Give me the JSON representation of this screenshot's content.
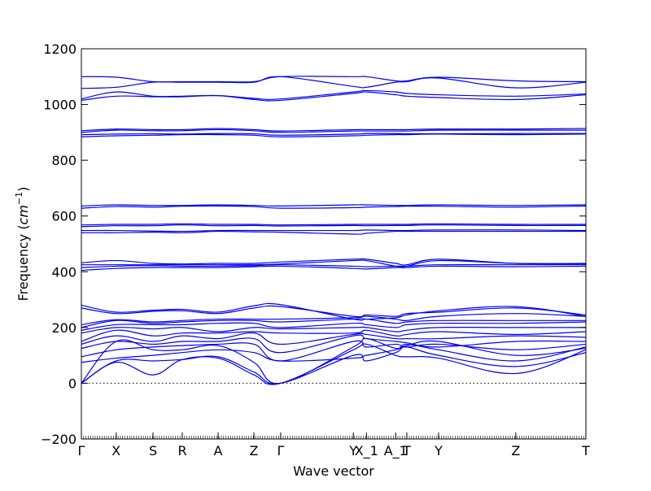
{
  "chart_data": {
    "type": "line",
    "title": "",
    "xlabel": "Wave vector",
    "ylabel": "Frequency (cm⁻¹)",
    "ylabel_parts": {
      "main": "Frequency (",
      "unit": "cm",
      "exp": "−1",
      "close": ")"
    },
    "ylim": [
      -200,
      1200
    ],
    "yticks": [
      -200,
      0,
      200,
      400,
      600,
      800,
      1000,
      1200
    ],
    "ytick_labels": [
      "−200",
      "0",
      "200",
      "400",
      "600",
      "800",
      "1000",
      "1200"
    ],
    "xlim": [
      0,
      1
    ],
    "grid": false,
    "legend": "none",
    "line_color": "#0000ee",
    "zero_line_color": "#000000",
    "high_symmetry_points": [
      {
        "label": "Γ",
        "x": 0.0
      },
      {
        "label": "X",
        "x": 0.069
      },
      {
        "label": "S",
        "x": 0.142
      },
      {
        "label": "R",
        "x": 0.2
      },
      {
        "label": "A",
        "x": 0.271
      },
      {
        "label": "Z",
        "x": 0.342
      },
      {
        "label": "Γ",
        "x": 0.395
      },
      {
        "label": "Y",
        "x": 0.539
      },
      {
        "label": "X_1",
        "x": 0.565
      },
      {
        "label": "A_1",
        "x": 0.623
      },
      {
        "label": "T",
        "x": 0.645
      },
      {
        "label": "Y",
        "x": 0.708
      },
      {
        "label": "Z",
        "x": 0.861
      },
      {
        "label": "T",
        "x": 1.0
      }
    ],
    "x": [
      0.0,
      0.069,
      0.142,
      0.2,
      0.271,
      0.342,
      0.395,
      0.539,
      0.565,
      0.623,
      0.645,
      0.708,
      0.861,
      1.0
    ],
    "series": [
      {
        "values": [
          0,
          75,
          30,
          85,
          90,
          30,
          0,
          120,
          140,
          100,
          95,
          90,
          35,
          120
        ]
      },
      {
        "values": [
          0,
          80,
          80,
          85,
          95,
          40,
          0,
          100,
          80,
          110,
          130,
          100,
          60,
          110
        ]
      },
      {
        "values": [
          0,
          150,
          120,
          120,
          135,
          75,
          0,
          130,
          160,
          125,
          140,
          120,
          80,
          130
        ]
      },
      {
        "values": [
          75,
          90,
          100,
          110,
          120,
          110,
          80,
          90,
          100,
          120,
          135,
          150,
          100,
          125
        ]
      },
      {
        "values": [
          95,
          120,
          130,
          135,
          140,
          140,
          80,
          150,
          130,
          140,
          130,
          140,
          120,
          140
        ]
      },
      {
        "values": [
          125,
          150,
          140,
          150,
          150,
          160,
          110,
          170,
          160,
          150,
          145,
          130,
          150,
          150
        ]
      },
      {
        "values": [
          140,
          170,
          150,
          170,
          160,
          180,
          140,
          175,
          175,
          160,
          160,
          160,
          170,
          165
        ]
      },
      {
        "values": [
          150,
          190,
          170,
          180,
          180,
          185,
          180,
          180,
          190,
          170,
          175,
          185,
          175,
          185
        ]
      },
      {
        "values": [
          180,
          200,
          195,
          200,
          185,
          200,
          195,
          200,
          200,
          185,
          190,
          200,
          200,
          200
        ]
      },
      {
        "values": [
          190,
          210,
          210,
          210,
          215,
          215,
          200,
          215,
          210,
          200,
          210,
          215,
          215,
          220
        ]
      },
      {
        "values": [
          200,
          225,
          215,
          220,
          225,
          225,
          220,
          230,
          230,
          215,
          220,
          225,
          225,
          225
        ]
      },
      {
        "values": [
          210,
          228,
          220,
          225,
          230,
          230,
          230,
          235,
          240,
          230,
          225,
          240,
          250,
          240
        ]
      },
      {
        "values": [
          270,
          250,
          258,
          260,
          250,
          270,
          275,
          240,
          245,
          240,
          250,
          255,
          270,
          245
        ]
      },
      {
        "values": [
          280,
          255,
          262,
          265,
          255,
          278,
          282,
          230,
          230,
          235,
          245,
          260,
          275,
          240
        ]
      },
      {
        "values": [
          405,
          412,
          415,
          415,
          415,
          418,
          420,
          412,
          410,
          415,
          415,
          420,
          418,
          420
        ]
      },
      {
        "values": [
          415,
          420,
          422,
          420,
          420,
          422,
          425,
          420,
          418,
          420,
          420,
          425,
          425,
          425
        ]
      },
      {
        "values": [
          425,
          425,
          425,
          425,
          425,
          425,
          428,
          440,
          440,
          420,
          420,
          440,
          430,
          430
        ]
      },
      {
        "values": [
          432,
          440,
          430,
          428,
          430,
          430,
          435,
          445,
          445,
          430,
          425,
          445,
          430,
          428
        ]
      },
      {
        "values": [
          540,
          540,
          542,
          540,
          545,
          543,
          542,
          535,
          538,
          545,
          545,
          545,
          545,
          545
        ]
      },
      {
        "values": [
          548,
          548,
          546,
          545,
          548,
          548,
          548,
          548,
          550,
          548,
          548,
          550,
          550,
          548
        ]
      },
      {
        "values": [
          562,
          565,
          565,
          568,
          565,
          566,
          564,
          566,
          565,
          566,
          566,
          568,
          566,
          566
        ]
      },
      {
        "values": [
          568,
          570,
          570,
          572,
          570,
          570,
          568,
          570,
          570,
          570,
          570,
          572,
          570,
          570
        ]
      },
      {
        "values": [
          628,
          634,
          632,
          635,
          636,
          634,
          628,
          630,
          632,
          634,
          635,
          635,
          632,
          636
        ]
      },
      {
        "values": [
          636,
          640,
          638,
          638,
          640,
          638,
          636,
          640,
          640,
          638,
          638,
          640,
          638,
          640
        ]
      },
      {
        "values": [
          884,
          888,
          890,
          892,
          892,
          890,
          884,
          888,
          890,
          892,
          892,
          894,
          892,
          894
        ]
      },
      {
        "values": [
          892,
          894,
          895,
          894,
          896,
          895,
          890,
          894,
          896,
          896,
          895,
          895,
          896,
          896
        ]
      },
      {
        "values": [
          900,
          908,
          906,
          906,
          910,
          906,
          900,
          905,
          905,
          905,
          905,
          908,
          908,
          908
        ]
      },
      {
        "values": [
          906,
          912,
          910,
          910,
          914,
          910,
          905,
          910,
          910,
          910,
          910,
          912,
          912,
          914
        ]
      },
      {
        "values": [
          1015,
          1030,
          1028,
          1028,
          1032,
          1018,
          1015,
          1040,
          1045,
          1035,
          1030,
          1025,
          1018,
          1035
        ]
      },
      {
        "values": [
          1020,
          1045,
          1030,
          1030,
          1032,
          1022,
          1020,
          1045,
          1050,
          1045,
          1040,
          1035,
          1030,
          1038
        ]
      },
      {
        "values": [
          1058,
          1062,
          1080,
          1080,
          1080,
          1080,
          1100,
          1065,
          1062,
          1080,
          1082,
          1095,
          1060,
          1080
        ]
      },
      {
        "values": [
          1100,
          1098,
          1082,
          1082,
          1082,
          1082,
          1100,
          1100,
          1100,
          1085,
          1085,
          1098,
          1085,
          1082
        ]
      }
    ]
  }
}
